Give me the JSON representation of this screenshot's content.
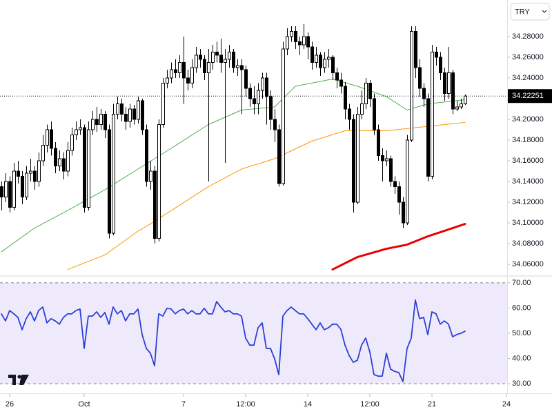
{
  "currency": "TRY",
  "chart_data": [
    {
      "type": "candlestick",
      "x": [
        0,
        1,
        2,
        3,
        4,
        5,
        6,
        7,
        8,
        9,
        10,
        11,
        12,
        13,
        14,
        15,
        16,
        17,
        18,
        19,
        20,
        21,
        22,
        23,
        24,
        25,
        26,
        27,
        28,
        29,
        30,
        31,
        32,
        33,
        34,
        35,
        36,
        37,
        38,
        39,
        40,
        41,
        42,
        43,
        44,
        45,
        46,
        47,
        48,
        49,
        50,
        51,
        52,
        53,
        54,
        55,
        56,
        57,
        58,
        59,
        60,
        61,
        62,
        63,
        64,
        65,
        66,
        67,
        68,
        69,
        70,
        71,
        72,
        73,
        74,
        75,
        76,
        77,
        78,
        79,
        80,
        81,
        82,
        83,
        84,
        85,
        86,
        87,
        88,
        89,
        90,
        91,
        92,
        93,
        94,
        95,
        96,
        97,
        98,
        99,
        100,
        101,
        102,
        103,
        104,
        105,
        106,
        107,
        108,
        109,
        110,
        111,
        112
      ],
      "open": [
        34.135,
        34.125,
        34.14,
        34.115,
        34.15,
        34.145,
        34.125,
        34.148,
        34.15,
        34.14,
        34.16,
        34.175,
        34.19,
        34.172,
        34.155,
        34.162,
        34.15,
        34.17,
        34.185,
        34.19,
        34.192,
        34.115,
        34.19,
        34.2,
        34.195,
        34.205,
        34.19,
        34.09,
        34.205,
        34.215,
        34.205,
        34.198,
        34.21,
        34.2,
        34.218,
        34.19,
        34.14,
        34.15,
        34.085,
        34.195,
        34.235,
        34.24,
        34.248,
        34.245,
        34.255,
        34.24,
        34.235,
        34.25,
        34.262,
        34.258,
        34.245,
        34.255,
        34.265,
        34.262,
        34.255,
        34.258,
        34.265,
        34.25,
        34.252,
        34.248,
        34.23,
        34.22,
        34.215,
        34.228,
        34.24,
        34.222,
        34.2,
        34.19,
        34.138,
        34.268,
        34.28,
        34.285,
        34.275,
        34.272,
        34.28,
        34.27,
        34.255,
        34.262,
        34.25,
        34.258,
        34.26,
        34.245,
        34.238,
        34.232,
        34.21,
        34.2,
        34.12,
        34.205,
        34.215,
        34.235,
        34.22,
        34.19,
        34.165,
        34.16,
        34.162,
        34.14,
        34.135,
        34.12,
        34.1,
        34.18,
        34.285,
        34.25,
        34.23,
        34.22,
        34.145,
        34.265,
        34.26,
        34.245,
        34.225,
        34.245,
        34.21,
        34.212,
        34.215
      ],
      "high": [
        34.14,
        34.148,
        34.145,
        34.158,
        34.16,
        34.15,
        34.155,
        34.162,
        34.155,
        34.168,
        34.185,
        34.195,
        34.198,
        34.178,
        34.17,
        34.168,
        34.178,
        34.192,
        34.198,
        34.2,
        34.195,
        34.198,
        34.208,
        34.212,
        34.21,
        34.208,
        34.195,
        34.215,
        34.222,
        34.22,
        34.212,
        34.215,
        34.214,
        34.222,
        34.22,
        34.195,
        34.16,
        34.155,
        34.2,
        34.24,
        34.248,
        34.255,
        34.258,
        34.262,
        34.28,
        34.248,
        34.258,
        34.27,
        34.268,
        34.262,
        34.268,
        34.272,
        34.275,
        34.278,
        34.268,
        34.272,
        34.268,
        34.258,
        34.258,
        34.252,
        34.235,
        34.232,
        34.235,
        34.245,
        34.245,
        34.228,
        34.21,
        34.195,
        34.275,
        34.288,
        34.29,
        34.29,
        34.28,
        34.292,
        34.284,
        34.275,
        34.27,
        34.265,
        34.265,
        34.268,
        34.262,
        34.25,
        34.245,
        34.236,
        34.215,
        34.205,
        34.212,
        34.228,
        34.24,
        34.238,
        34.225,
        34.195,
        34.172,
        34.17,
        34.165,
        34.145,
        34.14,
        34.125,
        34.185,
        34.29,
        34.29,
        34.258,
        34.235,
        34.225,
        34.272,
        34.27,
        34.265,
        34.25,
        34.27,
        34.248,
        34.218,
        34.22,
        34.224
      ],
      "low": [
        34.112,
        34.12,
        34.11,
        34.112,
        34.138,
        34.118,
        34.122,
        34.14,
        34.132,
        34.135,
        34.155,
        34.168,
        34.165,
        34.148,
        34.15,
        34.142,
        34.145,
        34.165,
        34.18,
        34.185,
        34.11,
        34.112,
        34.185,
        34.188,
        34.19,
        34.182,
        34.085,
        34.088,
        34.2,
        34.198,
        34.19,
        34.192,
        34.195,
        34.196,
        34.185,
        34.135,
        34.132,
        34.08,
        34.082,
        34.192,
        34.23,
        34.235,
        34.24,
        34.24,
        34.215,
        34.228,
        34.23,
        34.245,
        34.25,
        34.238,
        34.14,
        34.248,
        34.255,
        34.245,
        34.158,
        34.25,
        34.245,
        34.242,
        34.205,
        34.222,
        34.212,
        34.205,
        34.205,
        34.22,
        34.195,
        34.19,
        34.178,
        34.135,
        34.136,
        34.262,
        34.275,
        34.268,
        34.262,
        34.268,
        34.258,
        34.248,
        34.25,
        34.242,
        34.245,
        34.25,
        34.238,
        34.23,
        34.225,
        34.2,
        34.19,
        34.11,
        34.118,
        34.2,
        34.21,
        34.212,
        34.185,
        34.16,
        34.14,
        34.155,
        34.135,
        34.128,
        34.108,
        34.095,
        34.098,
        34.178,
        34.24,
        34.222,
        34.212,
        34.14,
        34.142,
        34.252,
        34.238,
        34.218,
        34.22,
        34.205,
        34.208,
        34.21,
        34.214
      ],
      "close": [
        34.125,
        34.14,
        34.115,
        34.15,
        34.145,
        34.125,
        34.148,
        34.15,
        34.14,
        34.16,
        34.175,
        34.19,
        34.172,
        34.155,
        34.162,
        34.15,
        34.17,
        34.185,
        34.19,
        34.192,
        34.115,
        34.19,
        34.2,
        34.195,
        34.205,
        34.19,
        34.09,
        34.205,
        34.215,
        34.205,
        34.198,
        34.21,
        34.2,
        34.218,
        34.19,
        34.14,
        34.15,
        34.085,
        34.195,
        34.235,
        34.24,
        34.248,
        34.245,
        34.255,
        34.24,
        34.235,
        34.25,
        34.262,
        34.258,
        34.245,
        34.255,
        34.265,
        34.262,
        34.255,
        34.258,
        34.265,
        34.25,
        34.252,
        34.248,
        34.23,
        34.22,
        34.215,
        34.228,
        34.24,
        34.222,
        34.2,
        34.19,
        34.138,
        34.268,
        34.28,
        34.285,
        34.275,
        34.272,
        34.28,
        34.27,
        34.255,
        34.262,
        34.25,
        34.258,
        34.26,
        34.245,
        34.238,
        34.232,
        34.21,
        34.2,
        34.12,
        34.205,
        34.215,
        34.235,
        34.22,
        34.19,
        34.165,
        34.16,
        34.162,
        34.14,
        34.135,
        34.12,
        34.1,
        34.18,
        34.285,
        34.25,
        34.23,
        34.22,
        34.145,
        34.265,
        34.26,
        34.245,
        34.225,
        34.245,
        34.21,
        34.212,
        34.215,
        34.2225
      ],
      "up_color": "#ffffff",
      "down_color": "#000000",
      "series": [
        {
          "color": "#4caf50",
          "width": 1,
          "x": [
            0,
            8,
            16,
            25,
            33,
            41,
            50,
            58,
            66,
            71,
            80,
            86,
            93,
            98,
            103,
            112
          ],
          "values": [
            34.072,
            34.095,
            34.112,
            34.132,
            34.152,
            34.172,
            34.195,
            34.209,
            34.212,
            34.232,
            34.239,
            34.232,
            34.222,
            34.209,
            34.215,
            34.219
          ]
        },
        {
          "color": "#ff9800",
          "width": 1,
          "x": [
            16,
            25,
            33,
            36,
            50,
            58,
            66,
            75,
            83,
            93,
            100,
            112
          ],
          "values": [
            34.055,
            34.069,
            34.092,
            34.099,
            34.135,
            34.152,
            34.162,
            34.179,
            34.189,
            34.189,
            34.192,
            34.197
          ]
        },
        {
          "color": "#e60000",
          "width": 3,
          "x": [
            80,
            86,
            93,
            98,
            103,
            112
          ],
          "values": [
            34.055,
            34.067,
            34.075,
            34.079,
            34.087,
            34.099
          ]
        }
      ],
      "xlim": [
        -0.33,
        122.17
      ],
      "ylim": [
        34.0487,
        34.3153
      ],
      "yticks": [
        {
          "value": 34.06,
          "label": "34.06000"
        },
        {
          "value": 34.08,
          "label": "34.08000"
        },
        {
          "value": 34.1,
          "label": "34.10000"
        },
        {
          "value": 34.12,
          "label": "34.12000"
        },
        {
          "value": 34.14,
          "label": "34.14000"
        },
        {
          "value": 34.16,
          "label": "34.16000"
        },
        {
          "value": 34.18,
          "label": "34.18000"
        },
        {
          "value": 34.2,
          "label": "34.20000"
        },
        {
          "value": 34.22,
          "label": "34.22000"
        },
        {
          "value": 34.24,
          "label": "34.24000"
        },
        {
          "value": 34.26,
          "label": "34.26000"
        },
        {
          "value": 34.28,
          "label": "34.28000"
        }
      ],
      "last_price": 34.22251
    },
    {
      "type": "line",
      "x": [
        0,
        1,
        2,
        3,
        4,
        5,
        6,
        7,
        8,
        9,
        10,
        11,
        12,
        13,
        14,
        15,
        16,
        17,
        18,
        19,
        20,
        21,
        22,
        23,
        24,
        25,
        26,
        27,
        28,
        29,
        30,
        31,
        32,
        33,
        34,
        35,
        36,
        37,
        38,
        39,
        40,
        41,
        42,
        43,
        44,
        45,
        46,
        47,
        48,
        49,
        50,
        51,
        52,
        53,
        54,
        55,
        56,
        57,
        58,
        59,
        60,
        61,
        62,
        63,
        64,
        65,
        66,
        67,
        68,
        69,
        70,
        71,
        72,
        73,
        74,
        75,
        76,
        77,
        78,
        79,
        80,
        81,
        82,
        83,
        84,
        85,
        86,
        87,
        88,
        89,
        90,
        91,
        92,
        93,
        94,
        95,
        96,
        97,
        98,
        99,
        100,
        101,
        102,
        103,
        104,
        105,
        106,
        107,
        108,
        109,
        110,
        111,
        112
      ],
      "values": [
        57.7,
        54.9,
        59.0,
        57.7,
        56.3,
        51.4,
        55.8,
        58.5,
        54.9,
        59.0,
        60.4,
        54.1,
        55.8,
        54.9,
        53.6,
        56.3,
        57.7,
        57.7,
        59.0,
        59.6,
        44.0,
        56.8,
        56.8,
        58.5,
        56.3,
        58.2,
        53.6,
        60.4,
        57.7,
        59.0,
        54.9,
        57.7,
        57.7,
        59.6,
        49.5,
        44.0,
        42.1,
        37.1,
        57.7,
        56.8,
        59.9,
        59.6,
        57.7,
        59.0,
        59.6,
        57.7,
        59.0,
        57.7,
        57.7,
        59.9,
        57.7,
        57.7,
        62.6,
        60.4,
        58.5,
        59.0,
        57.7,
        57.7,
        56.8,
        48.1,
        45.3,
        45.3,
        52.2,
        54.1,
        44.0,
        44.0,
        39.9,
        33.6,
        56.8,
        59.0,
        60.4,
        59.0,
        57.7,
        57.7,
        55.8,
        53.6,
        51.4,
        54.1,
        51.4,
        52.2,
        53.6,
        53.6,
        51.6,
        45.3,
        41.2,
        38.5,
        39.3,
        45.3,
        48.1,
        42.6,
        33.6,
        33.0,
        33.0,
        42.1,
        35.8,
        34.9,
        34.4,
        30.8,
        44.0,
        48.1,
        63.2,
        55.8,
        56.3,
        49.5,
        58.5,
        57.7,
        53.6,
        54.9,
        53.6,
        48.6,
        49.5,
        50.0,
        50.8
      ],
      "color": "#2b3fd6",
      "band": [
        30,
        70
      ],
      "band_color": "#efeafb",
      "xlim": [
        -0.33,
        122.17
      ],
      "ylim": [
        26.2,
        72.7
      ],
      "yticks": [
        {
          "value": 30,
          "label": "30.00"
        },
        {
          "value": 40,
          "label": "40.00"
        },
        {
          "value": 50,
          "label": "50.00"
        },
        {
          "value": 60,
          "label": "60.00"
        },
        {
          "value": 70,
          "label": "70.00"
        }
      ],
      "xticks": [
        {
          "value": 2,
          "label": "26"
        },
        {
          "value": 20,
          "label": "Oct"
        },
        {
          "value": 44,
          "label": "7"
        },
        {
          "value": 59,
          "label": "12:00"
        },
        {
          "value": 74,
          "label": "14"
        },
        {
          "value": 89,
          "label": "12:00"
        },
        {
          "value": 104,
          "label": "21"
        },
        {
          "value": 122,
          "label": "24"
        }
      ]
    }
  ]
}
